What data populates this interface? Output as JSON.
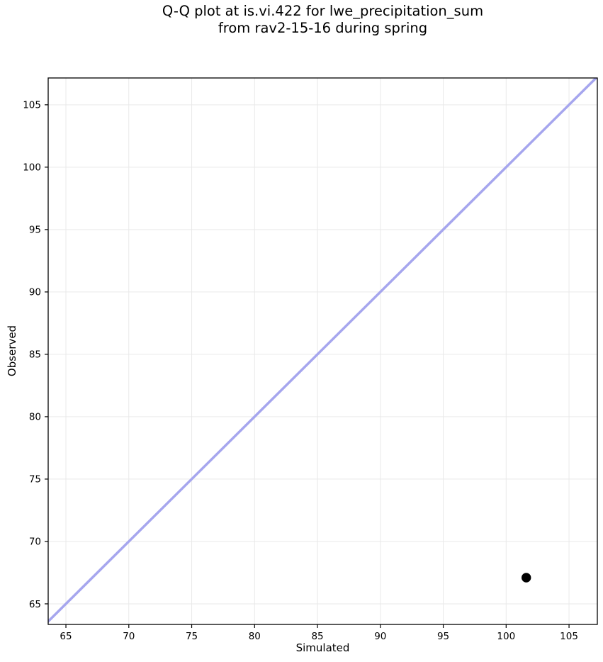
{
  "figure": {
    "title_line1": "Q-Q plot at is.vi.422 for lwe_precipitation_sum",
    "title_line2": "from rav2-15-16 during spring"
  },
  "chart_data": {
    "type": "scatter",
    "title": "Q-Q plot at is.vi.422 for lwe_precipitation_sum\nfrom rav2-15-16 during spring",
    "xlabel": "Simulated",
    "ylabel": "Observed",
    "xlim": [
      63.59,
      107.25
    ],
    "ylim": [
      63.35,
      107.15
    ],
    "x_ticks": [
      65,
      70,
      75,
      80,
      85,
      90,
      95,
      100,
      105
    ],
    "y_ticks": [
      65,
      70,
      75,
      80,
      85,
      90,
      95,
      100,
      105
    ],
    "grid": true,
    "grid_color": "#e9e9e9",
    "spine_color": "#000000",
    "tick_label_color": "#000000",
    "background": "#ffffff",
    "series": [
      {
        "name": "identity-line",
        "type": "line",
        "x": [
          63.0,
          108.0
        ],
        "y": [
          63.0,
          108.0
        ],
        "color": "#a6a6ee",
        "width": 3.5
      },
      {
        "name": "quantile-point",
        "type": "scatter",
        "color": "#000000",
        "marker_radius": 6.7,
        "points": [
          {
            "x": 101.6,
            "y": 67.1
          }
        ]
      }
    ]
  }
}
